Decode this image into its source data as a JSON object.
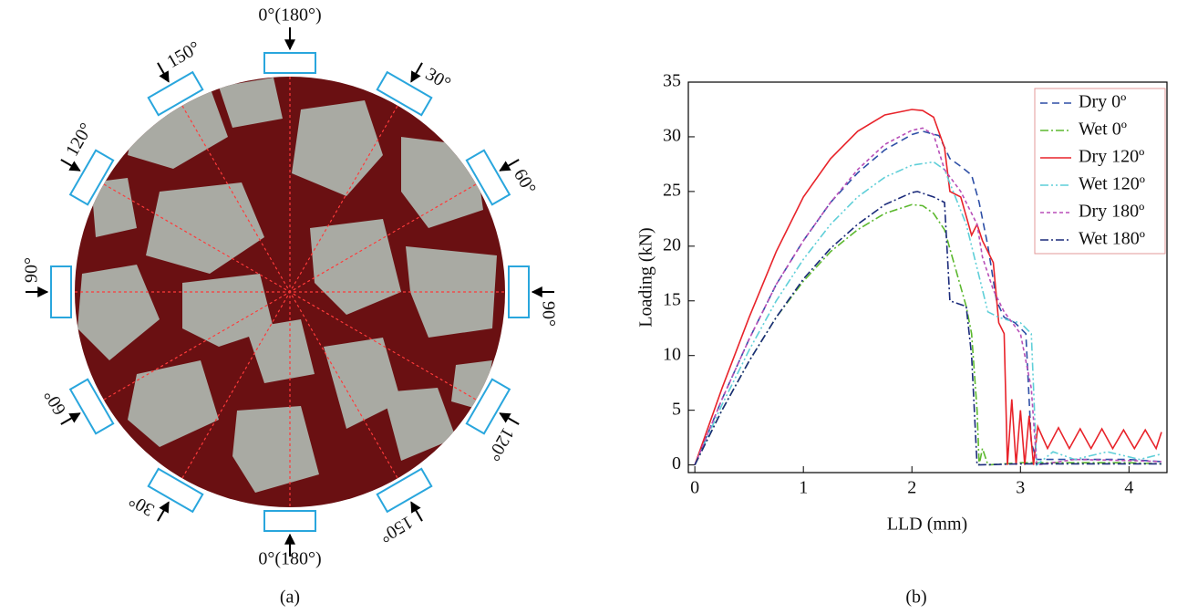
{
  "panel_a": {
    "labels": [
      "0°(180°)",
      "30°",
      "60°",
      "90°",
      "120°",
      "150°",
      "0°(180°)",
      "30°",
      "60°",
      "90°",
      "120°",
      "150°"
    ],
    "caption": "(a)"
  },
  "chart_data": {
    "type": "line",
    "caption": "(b)",
    "x_label": "LLD (mm)",
    "y_label": "Loading (kN)",
    "xlim": [
      -0.06,
      4.35
    ],
    "ylim": [
      -0.7,
      35
    ],
    "xticks": [
      0,
      1,
      2,
      3,
      4
    ],
    "yticks": [
      0,
      5,
      10,
      15,
      20,
      25,
      30,
      35
    ],
    "legend": "upper right",
    "series": [
      {
        "name": "Dry 0º",
        "color": "#2e4fa6",
        "dash": "8,5",
        "x": [
          0,
          0.25,
          0.5,
          0.75,
          1,
          1.25,
          1.5,
          1.75,
          2,
          2.1,
          2.25,
          2.35,
          2.45,
          2.55,
          2.62,
          2.7,
          2.78,
          2.85,
          2.95,
          3.05,
          3.1,
          3.15,
          3.5,
          4,
          4.3
        ],
        "values": [
          0,
          6,
          11.5,
          16.5,
          20.5,
          24,
          26.7,
          28.8,
          30.2,
          30.5,
          30.1,
          28,
          27.3,
          26.5,
          24,
          20,
          15,
          13.5,
          13,
          12,
          2,
          0.5,
          0.5,
          0.5,
          0.3
        ]
      },
      {
        "name": "Wet 0º",
        "color": "#5cb82e",
        "dash": "9,3,2,3",
        "x": [
          0,
          0.25,
          0.5,
          0.75,
          1,
          1.25,
          1.5,
          1.75,
          2,
          2.1,
          2.2,
          2.3,
          2.4,
          2.5,
          2.55,
          2.6,
          2.62,
          2.65,
          2.7,
          3,
          4,
          4.3
        ],
        "values": [
          0,
          5,
          9.5,
          13.5,
          16.8,
          19.5,
          21.5,
          23,
          23.8,
          23.7,
          23,
          21.5,
          18,
          14.5,
          12,
          5,
          0,
          1.5,
          0,
          0.2,
          0.2,
          0.1
        ]
      },
      {
        "name": "Dry 120º",
        "color": "#e8232a",
        "dash": "",
        "x": [
          0,
          0.25,
          0.5,
          0.75,
          1,
          1.25,
          1.5,
          1.75,
          2,
          2.1,
          2.2,
          2.3,
          2.35,
          2.45,
          2.55,
          2.6,
          2.65,
          2.75,
          2.8,
          2.85,
          2.88,
          2.92,
          2.96,
          3.0,
          3.04,
          3.08,
          3.12,
          3.16,
          3.25,
          3.35,
          3.45,
          3.55,
          3.65,
          3.75,
          3.85,
          3.95,
          4.05,
          4.15,
          4.25,
          4.3
        ],
        "values": [
          0,
          7,
          13.5,
          19.5,
          24.5,
          28,
          30.5,
          32,
          32.5,
          32.4,
          31.8,
          29,
          25,
          24.5,
          21,
          22,
          20.5,
          18.5,
          13,
          12,
          0,
          6,
          0,
          5,
          0,
          4.5,
          0,
          3.5,
          1.5,
          3.4,
          1.5,
          3.3,
          1.5,
          3.3,
          1.5,
          3.2,
          1.5,
          3.2,
          1.5,
          3
        ]
      },
      {
        "name": "Wet 120º",
        "color": "#5fcfd8",
        "dash": "9,3,2,3,2,3",
        "x": [
          0,
          0.25,
          0.5,
          0.75,
          1,
          1.25,
          1.5,
          1.75,
          2,
          2.2,
          2.3,
          2.4,
          2.5,
          2.6,
          2.7,
          2.8,
          2.9,
          3.0,
          3.1,
          3.15,
          3.3,
          3.5,
          3.8,
          4.1,
          4.3
        ],
        "values": [
          0,
          5.5,
          10.5,
          15,
          18.8,
          22,
          24.5,
          26.3,
          27.4,
          27.7,
          27,
          24.5,
          22,
          18,
          14,
          13.5,
          13.2,
          13,
          12,
          0,
          1.2,
          0.5,
          1.2,
          0.5,
          1
        ]
      },
      {
        "name": "Dry 180º",
        "color": "#b84fb8",
        "dash": "4,3",
        "x": [
          0,
          0.25,
          0.5,
          0.75,
          1,
          1.25,
          1.5,
          1.75,
          2,
          2.1,
          2.2,
          2.3,
          2.45,
          2.6,
          2.65,
          2.75,
          2.85,
          3.0,
          3.1,
          3.15,
          3.5,
          4,
          4.3
        ],
        "values": [
          0,
          6,
          11.5,
          16.5,
          20.5,
          24,
          27,
          29.3,
          30.6,
          30.8,
          30.2,
          27,
          25,
          22,
          19,
          16,
          14,
          12,
          7,
          0,
          0.5,
          0.4,
          0.3
        ]
      },
      {
        "name": "Wet 180º",
        "color": "#1a2a7a",
        "dash": "9,3,2,3",
        "x": [
          0,
          0.25,
          0.5,
          0.75,
          1,
          1.25,
          1.5,
          1.75,
          2,
          2.05,
          2.2,
          2.3,
          2.35,
          2.5,
          2.55,
          2.6,
          3,
          4,
          4.3
        ],
        "values": [
          0,
          5,
          9.5,
          13.5,
          17,
          19.8,
          22,
          23.8,
          24.9,
          25,
          24.5,
          24,
          15,
          14.5,
          10,
          0,
          0.1,
          0.1,
          0.1
        ]
      }
    ]
  }
}
